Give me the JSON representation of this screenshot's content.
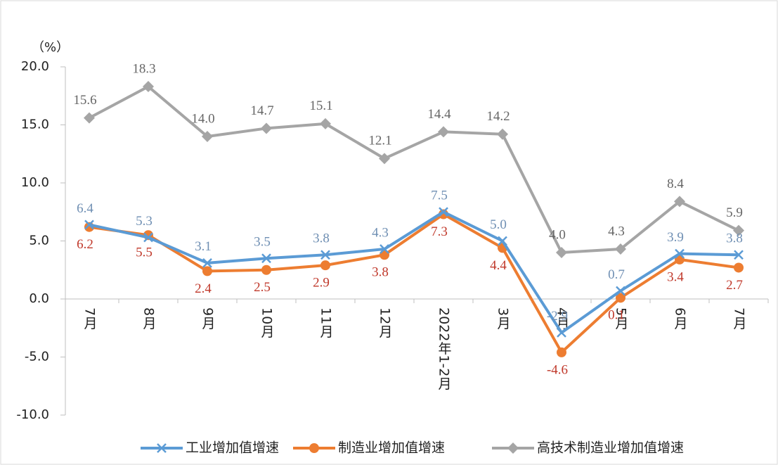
{
  "chart_data": {
    "type": "line",
    "y_label": "（%）",
    "categories": [
      "7月",
      "8月",
      "9月",
      "10月",
      "11月",
      "12月",
      "2022年1-2月",
      "3月",
      "4月",
      "5月",
      "6月",
      "7月"
    ],
    "series": [
      {
        "name": "工业增加值增速",
        "color": "#5b9bd5",
        "marker": "x",
        "values": [
          6.4,
          5.3,
          3.1,
          3.5,
          3.8,
          4.3,
          7.5,
          5.0,
          -2.9,
          0.7,
          3.9,
          3.8
        ],
        "value_labels": [
          "6.4",
          "5.3",
          "3.1",
          "3.5",
          "3.8",
          "4.3",
          "7.5",
          "5.0",
          "-2.9",
          "0.7",
          "3.9",
          "3.8"
        ]
      },
      {
        "name": "制造业增加值增速",
        "color": "#ed7d31",
        "marker": "circle",
        "values": [
          6.2,
          5.5,
          2.4,
          2.5,
          2.9,
          3.8,
          7.3,
          4.4,
          -4.6,
          0.1,
          3.4,
          2.7
        ],
        "value_labels": [
          "6.2",
          "5.5",
          "2.4",
          "2.5",
          "2.9",
          "3.8",
          "7.3",
          "4.4",
          "-4.6",
          "0.1",
          "3.4",
          "2.7"
        ]
      },
      {
        "name": "高技术制造业增加值增速",
        "color": "#a5a5a5",
        "marker": "diamond",
        "values": [
          15.6,
          18.3,
          14.0,
          14.7,
          15.1,
          12.1,
          14.4,
          14.2,
          4.0,
          4.3,
          8.4,
          5.9
        ],
        "value_labels": [
          "15.6",
          "18.3",
          "14.0",
          "14.7",
          "15.1",
          "12.1",
          "14.4",
          "14.2",
          "4.0",
          "4.3",
          "8.4",
          "5.9"
        ]
      }
    ],
    "ylim": [
      -10,
      20
    ],
    "yticks": [
      {
        "value": -10,
        "label": "-10.0"
      },
      {
        "value": -5,
        "label": "-5.0"
      },
      {
        "value": 0,
        "label": "0.0"
      },
      {
        "value": 5,
        "label": "5.0"
      },
      {
        "value": 10,
        "label": "10.0"
      },
      {
        "value": 15,
        "label": "15.0"
      },
      {
        "value": 20,
        "label": "20.0"
      }
    ],
    "legend": "bottom"
  }
}
